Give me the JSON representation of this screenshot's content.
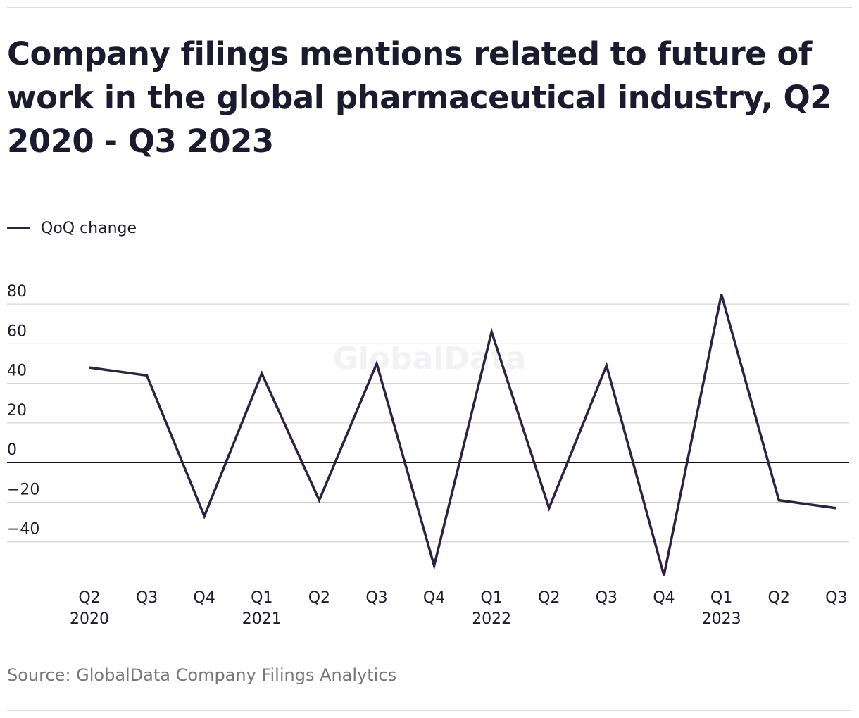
{
  "chart_data": {
    "type": "line",
    "title": "Company filings mentions related to future of work in the global pharmaceutical industry, Q2 2020 - Q3 2023",
    "watermark": "GlobalData",
    "source": "Source: GlobalData Company Filings Analytics",
    "categories": [
      "Q2\n2020",
      "Q3",
      "Q4",
      "Q1\n2021",
      "Q2",
      "Q3",
      "Q4",
      "Q1\n2022",
      "Q2",
      "Q3",
      "Q4",
      "Q1\n2023",
      "Q2",
      "Q3"
    ],
    "series": [
      {
        "name": "QoQ change",
        "color": "#2e2146",
        "values": [
          48,
          44,
          -27,
          45,
          -19,
          50,
          -52,
          66,
          -23,
          49,
          -57,
          85,
          -19,
          -23
        ]
      }
    ],
    "ylim": [
      -60,
      90
    ],
    "yticks": [
      80,
      60,
      40,
      20,
      0,
      {
        "value": -20,
        "label": "−20"
      },
      {
        "value": -40,
        "label": "−40"
      }
    ],
    "grid": true
  }
}
